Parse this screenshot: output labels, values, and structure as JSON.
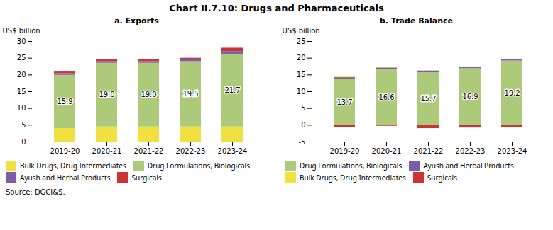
{
  "title": "Chart II.7.10: Drugs and Pharmaceuticals",
  "caption": "Source: DGCI&S.",
  "chart_data": [
    {
      "type": "bar",
      "stacked": true,
      "grid": false,
      "legend": "bottom",
      "data_labels": true,
      "title": "a. Exports",
      "ylabel": "US$ billion",
      "categories": [
        "2019-20",
        "2020-21",
        "2021-22",
        "2022-23",
        "2023-24"
      ],
      "ylim": [
        0,
        30
      ],
      "yticks": [
        0,
        5,
        10,
        15,
        20,
        25,
        30
      ],
      "series": [
        {
          "name": "Bulk Drugs, Drug Intermediates",
          "color": "#f0e040",
          "values": [
            4.0,
            4.5,
            4.5,
            4.5,
            4.5
          ]
        },
        {
          "name": "Drug Formulations, Biologicals",
          "color": "#adc97a",
          "values": [
            15.9,
            19.0,
            19.0,
            19.5,
            21.7
          ],
          "value_labels": [
            "15.9",
            "19.0",
            "19.0",
            "19.5",
            "21.7"
          ]
        },
        {
          "name": "Ayush and Herbal Products",
          "color": "#7b5ea7",
          "values": [
            0.5,
            0.5,
            0.5,
            0.5,
            0.8
          ]
        },
        {
          "name": "Surgicals",
          "color": "#cc3333",
          "values": [
            0.5,
            0.5,
            0.5,
            0.5,
            1.0
          ]
        }
      ]
    },
    {
      "type": "bar",
      "stacked": true,
      "grid": false,
      "legend": "bottom",
      "data_labels": true,
      "title": "b. Trade Balance",
      "ylabel": "US$ billion",
      "categories": [
        "2019-20",
        "2020-21",
        "2021-22",
        "2022-23",
        "2023-24"
      ],
      "ylim": [
        -5,
        25
      ],
      "yticks": [
        -5,
        0,
        5,
        10,
        15,
        20,
        25
      ],
      "series": [
        {
          "name": "Drug Formulations, Biologicals",
          "color": "#adc97a",
          "values": [
            13.7,
            16.6,
            15.7,
            16.9,
            19.2
          ],
          "value_labels": [
            "13.7",
            "16.6",
            "15.7",
            "16.9",
            "19.2"
          ]
        },
        {
          "name": "Ayush and Herbal Products",
          "color": "#7b5ea7",
          "values": [
            0.5,
            0.5,
            0.5,
            0.5,
            0.5
          ]
        },
        {
          "name": "Bulk Drugs, Drug Intermediates",
          "color": "#f0e040",
          "values": [
            0.2,
            0.2,
            0.0,
            0.0,
            0.0
          ]
        },
        {
          "name": "Surgicals",
          "color": "#cc3333",
          "values": [
            -0.7,
            -0.3,
            -1.0,
            -0.8,
            -0.7
          ]
        }
      ]
    }
  ]
}
